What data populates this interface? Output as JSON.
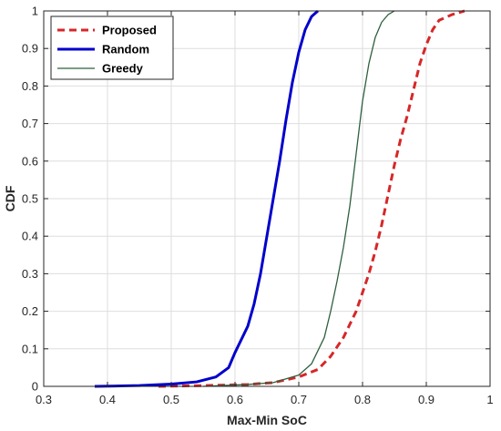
{
  "chart_data": {
    "type": "line",
    "xlabel": "Max-Min SoC",
    "ylabel": "CDF",
    "xlim": [
      0.3,
      1.0
    ],
    "ylim": [
      0,
      1
    ],
    "grid": true,
    "legend": "top-left",
    "x_ticks": [
      "0.3",
      "0.4",
      "0.5",
      "0.6",
      "0.7",
      "0.8",
      "0.9",
      "1"
    ],
    "y_ticks": [
      "0",
      "0.1",
      "0.2",
      "0.3",
      "0.4",
      "0.5",
      "0.6",
      "0.7",
      "0.8",
      "0.9",
      "1"
    ],
    "series": [
      {
        "name": "Proposed",
        "color": "#d62728",
        "style": "dashed",
        "points": [
          [
            0.48,
            0
          ],
          [
            0.55,
            0.002
          ],
          [
            0.62,
            0.005
          ],
          [
            0.66,
            0.01
          ],
          [
            0.7,
            0.025
          ],
          [
            0.73,
            0.045
          ],
          [
            0.75,
            0.08
          ],
          [
            0.77,
            0.13
          ],
          [
            0.79,
            0.2
          ],
          [
            0.8,
            0.25
          ],
          [
            0.81,
            0.3
          ],
          [
            0.82,
            0.36
          ],
          [
            0.83,
            0.43
          ],
          [
            0.84,
            0.51
          ],
          [
            0.85,
            0.59
          ],
          [
            0.86,
            0.66
          ],
          [
            0.87,
            0.72
          ],
          [
            0.88,
            0.79
          ],
          [
            0.89,
            0.86
          ],
          [
            0.9,
            0.91
          ],
          [
            0.91,
            0.95
          ],
          [
            0.92,
            0.975
          ],
          [
            0.94,
            0.99
          ],
          [
            0.96,
            1.0
          ]
        ]
      },
      {
        "name": "Random",
        "color": "#0000cc",
        "style": "solid",
        "points": [
          [
            0.38,
            0
          ],
          [
            0.45,
            0.002
          ],
          [
            0.5,
            0.006
          ],
          [
            0.54,
            0.012
          ],
          [
            0.57,
            0.025
          ],
          [
            0.59,
            0.05
          ],
          [
            0.6,
            0.09
          ],
          [
            0.62,
            0.16
          ],
          [
            0.63,
            0.22
          ],
          [
            0.64,
            0.3
          ],
          [
            0.65,
            0.4
          ],
          [
            0.66,
            0.5
          ],
          [
            0.67,
            0.6
          ],
          [
            0.68,
            0.71
          ],
          [
            0.69,
            0.81
          ],
          [
            0.7,
            0.89
          ],
          [
            0.71,
            0.95
          ],
          [
            0.72,
            0.985
          ],
          [
            0.73,
            1.0
          ]
        ]
      },
      {
        "name": "Greedy",
        "color": "#2f5f3f",
        "style": "solid",
        "points": [
          [
            0.55,
            0
          ],
          [
            0.62,
            0.005
          ],
          [
            0.66,
            0.01
          ],
          [
            0.7,
            0.03
          ],
          [
            0.72,
            0.06
          ],
          [
            0.74,
            0.13
          ],
          [
            0.75,
            0.2
          ],
          [
            0.76,
            0.28
          ],
          [
            0.77,
            0.37
          ],
          [
            0.78,
            0.48
          ],
          [
            0.79,
            0.62
          ],
          [
            0.8,
            0.76
          ],
          [
            0.81,
            0.86
          ],
          [
            0.82,
            0.93
          ],
          [
            0.83,
            0.97
          ],
          [
            0.84,
            0.99
          ],
          [
            0.85,
            1.0
          ]
        ]
      }
    ]
  }
}
